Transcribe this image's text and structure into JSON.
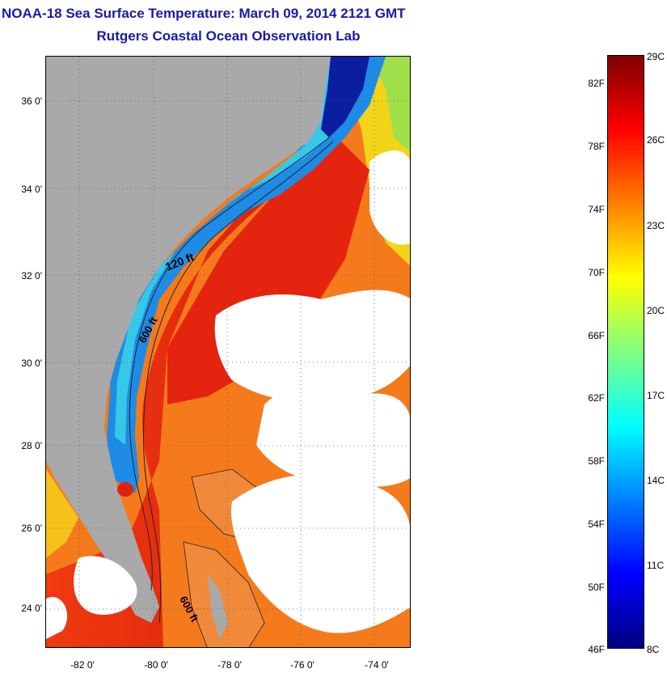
{
  "title": "NOAA-18 Sea Surface Temperature:  March 09, 2014 2121 GMT",
  "subtitle": "Rutgers Coastal Ocean Observation Lab",
  "map": {
    "lat_range": [
      23,
      37
    ],
    "lon_range": [
      -83,
      -73.2
    ],
    "lat_ticks": [
      "36 0'",
      "34 0'",
      "32 0'",
      "30 0'",
      "28 0'",
      "26 0'",
      "24 0'"
    ],
    "lon_ticks": [
      "-82 0'",
      "-80 0'",
      "-78 0'",
      "-76 0'",
      "-74 0'"
    ],
    "contour_labels": [
      "120 ft",
      "600 ft",
      "600 ft"
    ],
    "colors": {
      "land": "#a9a9a9",
      "cloud": "#ffffff",
      "gulf_stream": "#e8200e",
      "shelf": "#1e8ce6",
      "cold_inshore": "#0a1ea0",
      "offshore_warm": "#f57a1c"
    }
  },
  "colorbar": {
    "fahrenheit_labels": [
      "82F",
      "78F",
      "74F",
      "70F",
      "66F",
      "62F",
      "58F",
      "54F",
      "50F",
      "46F"
    ],
    "celsius_labels": [
      "29C",
      "26C",
      "23C",
      "20C",
      "17C",
      "14C",
      "11C",
      "8C"
    ],
    "stops": [
      "#800000",
      "#ff0000",
      "#ff8000",
      "#ffff00",
      "#80ff80",
      "#00ffff",
      "#0080ff",
      "#0000ff",
      "#000080"
    ]
  }
}
